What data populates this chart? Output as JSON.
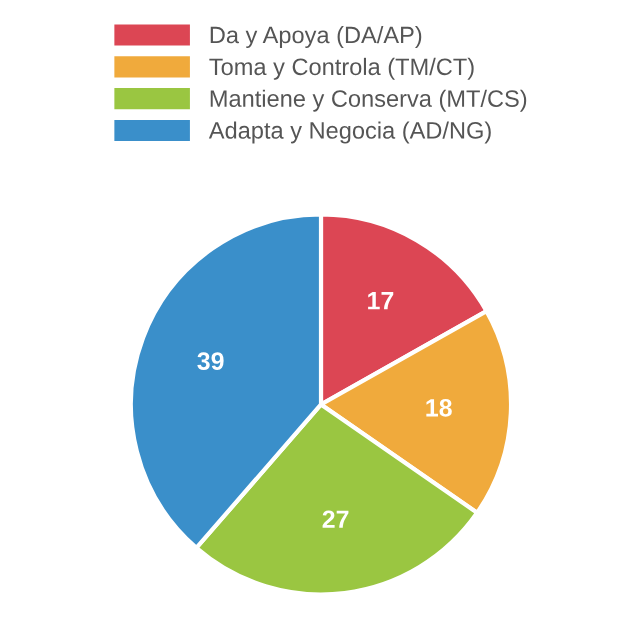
{
  "chart_data": {
    "type": "pie",
    "categories": [
      "Da y Apoya (DA/AP)",
      "Toma y Controla (TM/CT)",
      "Mantiene y Conserva (MT/CS)",
      "Adapta y Negocia (AD/NG)"
    ],
    "values": [
      17,
      18,
      27,
      39
    ],
    "colors": [
      "#dc4654",
      "#f0aa3c",
      "#9ac641",
      "#3a8fca"
    ],
    "data_labels": true,
    "legend": "top"
  }
}
